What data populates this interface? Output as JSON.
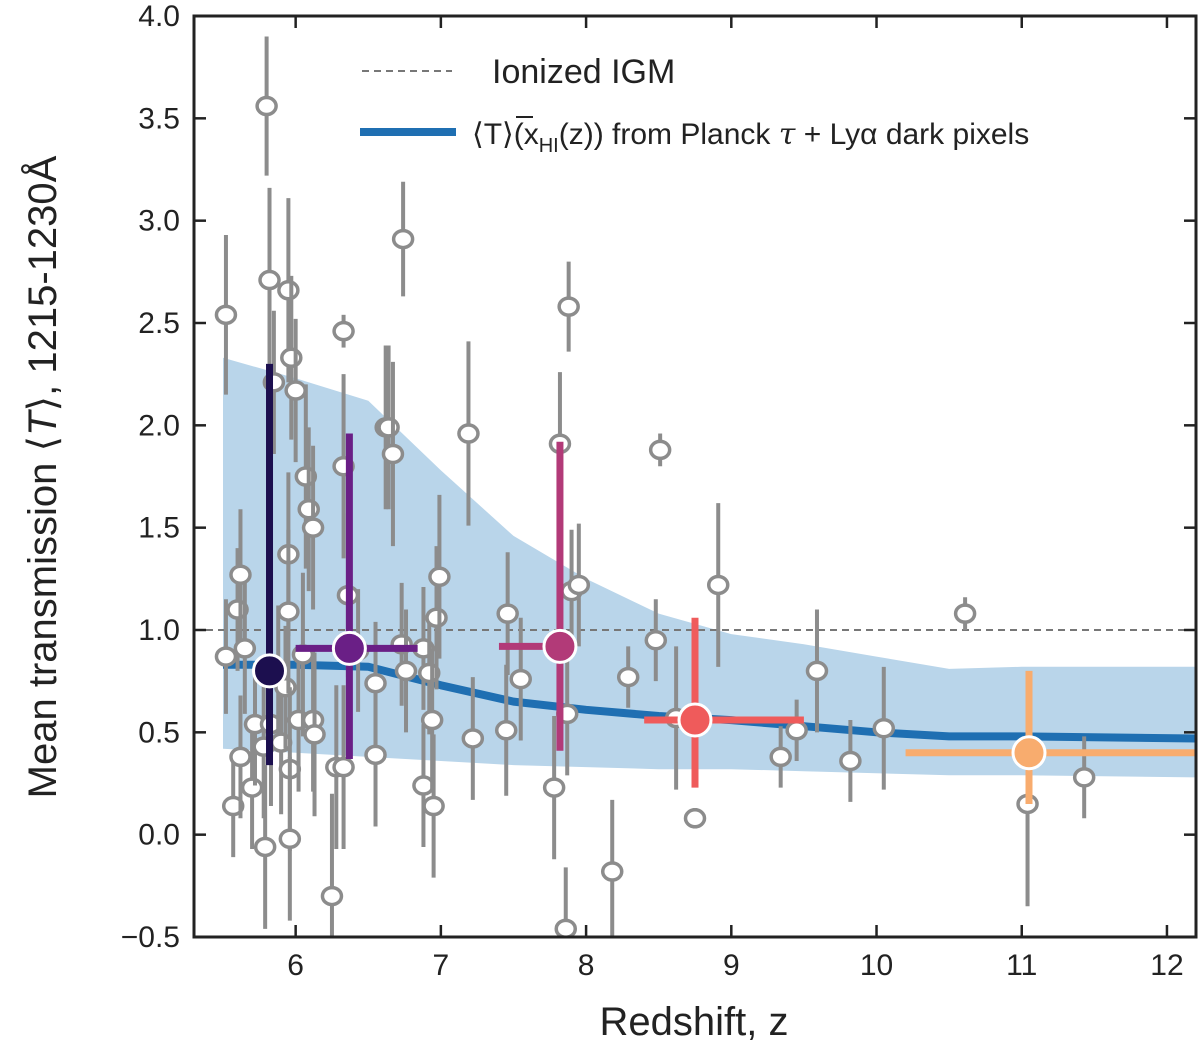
{
  "chart_data": {
    "type": "scatter",
    "xlabel": "Redshift, z",
    "ylabel_parts": {
      "main": "Mean transmission ",
      "lang": "⟨",
      "var": "T",
      "rang": "⟩",
      "tail": ", 1215-1230Å"
    },
    "xlim": [
      5.3,
      12.2
    ],
    "ylim": [
      -0.5,
      4.0
    ],
    "xticks": [
      6,
      7,
      8,
      9,
      10,
      11,
      12
    ],
    "yticks": [
      -0.5,
      0.0,
      0.5,
      1.0,
      1.5,
      2.0,
      2.5,
      3.0,
      3.5,
      4.0
    ],
    "ytick_labels": [
      "−0.5",
      "0.0",
      "0.5",
      "1.0",
      "1.5",
      "2.0",
      "2.5",
      "3.0",
      "3.5",
      "4.0"
    ],
    "legend": {
      "ionized_label": "Ionized IGM",
      "model_label_prefix": "⟨T⟩(x",
      "model_label_sub": "HI",
      "model_label_mid": "(z)) from Planck ",
      "model_label_tau": "τ",
      "model_label_suffix": " + Lyα dark pixels"
    },
    "colors": {
      "band": "#b9d5ea",
      "model_line": "#1f6fb2",
      "ionized_line": "#777777",
      "individual": "#8c8c8c",
      "individual_fill": "#ffffff"
    },
    "ionized_level": 1.0,
    "model_line": {
      "x": [
        5.5,
        6.0,
        6.5,
        7.0,
        7.5,
        8.0,
        8.5,
        9.0,
        9.5,
        10.0,
        10.5,
        11.0,
        12.2
      ],
      "y": [
        0.83,
        0.83,
        0.82,
        0.73,
        0.65,
        0.61,
        0.58,
        0.56,
        0.53,
        0.5,
        0.48,
        0.48,
        0.47
      ]
    },
    "band": {
      "x": [
        5.5,
        6.0,
        6.5,
        7.0,
        7.5,
        8.0,
        8.5,
        9.0,
        9.5,
        10.0,
        10.5,
        11.0,
        12.2
      ],
      "upper": [
        2.33,
        2.23,
        2.12,
        1.78,
        1.46,
        1.25,
        1.08,
        0.98,
        0.93,
        0.87,
        0.81,
        0.82,
        0.82
      ],
      "lower": [
        0.42,
        0.4,
        0.38,
        0.36,
        0.34,
        0.33,
        0.32,
        0.32,
        0.31,
        0.3,
        0.29,
        0.29,
        0.28
      ]
    },
    "individual_points": [
      {
        "x": 5.52,
        "y": 2.54,
        "yerr": 0.39
      },
      {
        "x": 5.52,
        "y": 0.87,
        "yerr": 0.28
      },
      {
        "x": 5.57,
        "y": 0.14,
        "yerr": 0.25
      },
      {
        "x": 5.6,
        "y": 1.1,
        "yerr": 0.3
      },
      {
        "x": 5.62,
        "y": 1.27,
        "yerr": 0.32
      },
      {
        "x": 5.62,
        "y": 0.38,
        "yerr": 0.3
      },
      {
        "x": 5.65,
        "y": 0.91,
        "yerr": 0.32
      },
      {
        "x": 5.7,
        "y": 0.23,
        "yerr": 0.3
      },
      {
        "x": 5.72,
        "y": 0.54,
        "yerr": 0.3
      },
      {
        "x": 5.78,
        "y": 0.43,
        "yerr": 0.35
      },
      {
        "x": 5.79,
        "y": -0.06,
        "yerr": 0.4
      },
      {
        "x": 5.8,
        "y": 3.56,
        "yerr": 0.34
      },
      {
        "x": 5.82,
        "y": 2.71,
        "yerr": 0.45
      },
      {
        "x": 5.83,
        "y": 0.54,
        "yerr": 0.4
      },
      {
        "x": 5.85,
        "y": 2.21,
        "yerr": 0.35
      },
      {
        "x": 5.88,
        "y": 0.8,
        "yerr": 0.32
      },
      {
        "x": 5.9,
        "y": 0.45,
        "yerr": 0.35
      },
      {
        "x": 5.93,
        "y": 0.72,
        "yerr": 0.3
      },
      {
        "x": 5.95,
        "y": 2.66,
        "yerr": 0.45
      },
      {
        "x": 5.95,
        "y": 1.37,
        "yerr": 0.4
      },
      {
        "x": 5.95,
        "y": 1.09,
        "yerr": 0.4
      },
      {
        "x": 5.96,
        "y": 0.32,
        "yerr": 0.4
      },
      {
        "x": 5.96,
        "y": -0.02,
        "yerr": 0.4
      },
      {
        "x": 5.97,
        "y": 2.33,
        "yerr": 0.4
      },
      {
        "x": 6.0,
        "y": 2.17,
        "yerr": 0.35
      },
      {
        "x": 6.02,
        "y": 0.56,
        "yerr": 0.35
      },
      {
        "x": 6.05,
        "y": 0.88,
        "yerr": 0.4
      },
      {
        "x": 6.07,
        "y": 1.75,
        "yerr": 0.45
      },
      {
        "x": 6.09,
        "y": 1.59,
        "yerr": 0.4
      },
      {
        "x": 6.12,
        "y": 1.5,
        "yerr": 0.4
      },
      {
        "x": 6.12,
        "y": 0.56,
        "yerr": 0.35
      },
      {
        "x": 6.13,
        "y": 0.49,
        "yerr": 0.4
      },
      {
        "x": 6.25,
        "y": -0.3,
        "yerr": 0.5
      },
      {
        "x": 6.28,
        "y": 0.33,
        "yerr": 0.4
      },
      {
        "x": 6.33,
        "y": 2.46,
        "yerr": 0.08
      },
      {
        "x": 6.33,
        "y": 1.8,
        "yerr": 0.45
      },
      {
        "x": 6.33,
        "y": 0.33,
        "yerr": 0.4
      },
      {
        "x": 6.36,
        "y": 1.17,
        "yerr": 0.4
      },
      {
        "x": 6.43,
        "y": 0.9,
        "yerr": 0.3
      },
      {
        "x": 6.55,
        "y": 0.39,
        "yerr": 0.35
      },
      {
        "x": 6.55,
        "y": 0.74,
        "yerr": 0.3
      },
      {
        "x": 6.62,
        "y": 1.99,
        "yerr": 0.4
      },
      {
        "x": 6.64,
        "y": 1.99,
        "yerr": 0.4
      },
      {
        "x": 6.67,
        "y": 1.86,
        "yerr": 0.45
      },
      {
        "x": 6.73,
        "y": 0.93,
        "yerr": 0.3
      },
      {
        "x": 6.74,
        "y": 2.91,
        "yerr": 0.28
      },
      {
        "x": 6.76,
        "y": 0.8,
        "yerr": 0.3
      },
      {
        "x": 6.88,
        "y": 0.91,
        "yerr": 0.3
      },
      {
        "x": 6.88,
        "y": 0.24,
        "yerr": 0.3
      },
      {
        "x": 6.92,
        "y": 0.79,
        "yerr": 0.3
      },
      {
        "x": 6.94,
        "y": 0.56,
        "yerr": 0.35
      },
      {
        "x": 6.95,
        "y": 0.14,
        "yerr": 0.35
      },
      {
        "x": 6.97,
        "y": 1.06,
        "yerr": 0.35
      },
      {
        "x": 6.99,
        "y": 1.26,
        "yerr": 0.4
      },
      {
        "x": 7.19,
        "y": 1.96,
        "yerr": 0.45
      },
      {
        "x": 7.22,
        "y": 0.47,
        "yerr": 0.3
      },
      {
        "x": 7.45,
        "y": 0.51,
        "yerr": 0.32
      },
      {
        "x": 7.46,
        "y": 1.08,
        "yerr": 0.3
      },
      {
        "x": 7.55,
        "y": 0.76,
        "yerr": 0.3
      },
      {
        "x": 7.78,
        "y": 0.23,
        "yerr": 0.35
      },
      {
        "x": 7.82,
        "y": 1.91,
        "yerr": 0.35
      },
      {
        "x": 7.86,
        "y": -0.46,
        "yerr": 0.3
      },
      {
        "x": 7.87,
        "y": 0.59,
        "yerr": 0.3
      },
      {
        "x": 7.88,
        "y": 2.58,
        "yerr": 0.22
      },
      {
        "x": 7.9,
        "y": 1.19,
        "yerr": 0.3
      },
      {
        "x": 7.95,
        "y": 1.22,
        "yerr": 0.3
      },
      {
        "x": 8.18,
        "y": -0.18,
        "yerr": 0.35
      },
      {
        "x": 8.29,
        "y": 0.77,
        "yerr": 0.15
      },
      {
        "x": 8.48,
        "y": 0.95,
        "yerr": 0.2
      },
      {
        "x": 8.51,
        "y": 1.88,
        "yerr": 0.08
      },
      {
        "x": 8.62,
        "y": 0.57,
        "yerr": 0.35
      },
      {
        "x": 8.75,
        "y": 0.08,
        "yerr": 0.05
      },
      {
        "x": 8.91,
        "y": 1.22,
        "yerr": 0.4
      },
      {
        "x": 9.34,
        "y": 0.38,
        "yerr": 0.15
      },
      {
        "x": 9.45,
        "y": 0.51,
        "yerr": 0.15
      },
      {
        "x": 9.59,
        "y": 0.8,
        "yerr": 0.3
      },
      {
        "x": 9.82,
        "y": 0.36,
        "yerr": 0.2
      },
      {
        "x": 10.05,
        "y": 0.52,
        "yerr": 0.3
      },
      {
        "x": 10.61,
        "y": 1.08,
        "yerr": 0.08
      },
      {
        "x": 11.04,
        "y": 0.15,
        "yerr": 0.5
      },
      {
        "x": 11.43,
        "y": 0.28,
        "yerr": 0.2
      }
    ],
    "binned_points": [
      {
        "x": 5.82,
        "y": 0.8,
        "xerr_lo": 0.07,
        "xerr_hi": 0.07,
        "yerr_lo": 0.46,
        "yerr_hi": 1.5,
        "color": "#1c0f4f"
      },
      {
        "x": 6.37,
        "y": 0.91,
        "xerr_lo": 0.37,
        "xerr_hi": 0.47,
        "yerr_lo": 0.54,
        "yerr_hi": 1.05,
        "color": "#6a1f86"
      },
      {
        "x": 7.82,
        "y": 0.92,
        "xerr_lo": 0.42,
        "xerr_hi": 0.0,
        "yerr_lo": 0.51,
        "yerr_hi": 1.0,
        "color": "#b23a78"
      },
      {
        "x": 8.75,
        "y": 0.56,
        "xerr_lo": 0.35,
        "xerr_hi": 0.75,
        "yerr_lo": 0.33,
        "yerr_hi": 0.5,
        "color": "#ef5b5b"
      },
      {
        "x": 11.05,
        "y": 0.4,
        "xerr_lo": 0.85,
        "xerr_hi": 1.15,
        "yerr_lo": 0.25,
        "yerr_hi": 0.4,
        "color": "#f8ac6e"
      }
    ]
  }
}
